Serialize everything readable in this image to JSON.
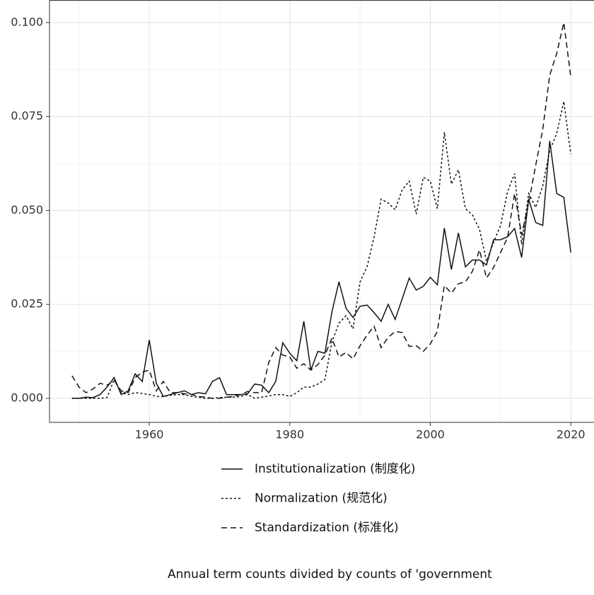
{
  "chart_data": {
    "type": "line",
    "x": [
      1949,
      1950,
      1951,
      1952,
      1953,
      1954,
      1955,
      1956,
      1957,
      1958,
      1959,
      1960,
      1961,
      1962,
      1963,
      1964,
      1965,
      1966,
      1967,
      1968,
      1969,
      1970,
      1971,
      1972,
      1973,
      1974,
      1975,
      1976,
      1977,
      1978,
      1979,
      1980,
      1981,
      1982,
      1983,
      1984,
      1985,
      1986,
      1987,
      1988,
      1989,
      1990,
      1991,
      1992,
      1993,
      1994,
      1995,
      1996,
      1997,
      1998,
      1999,
      2000,
      2001,
      2002,
      2003,
      2004,
      2005,
      2006,
      2007,
      2008,
      2009,
      2010,
      2011,
      2012,
      2013,
      2014,
      2015,
      2016,
      2017,
      2018,
      2019,
      2020
    ],
    "series": [
      {
        "name": "Institutionalization (制度化)",
        "color": "#111111",
        "dash": "solid",
        "values": [
          0,
          0,
          0.0003,
          0.0002,
          0.001,
          0.003,
          0.0055,
          0.001,
          0.002,
          0.0065,
          0.0045,
          0.0155,
          0.004,
          0.0005,
          0.001,
          0.0015,
          0.002,
          0.001,
          0.0015,
          0.0012,
          0.0045,
          0.0055,
          0.001,
          0.001,
          0.001,
          0.0012,
          0.0038,
          0.0035,
          0.0015,
          0.0045,
          0.0148,
          0.012,
          0.01,
          0.0205,
          0.0075,
          0.0125,
          0.012,
          0.023,
          0.031,
          0.024,
          0.0215,
          0.0245,
          0.0248,
          0.0228,
          0.0205,
          0.025,
          0.021,
          0.0265,
          0.032,
          0.0288,
          0.0298,
          0.0322,
          0.0302,
          0.0453,
          0.0343,
          0.044,
          0.035,
          0.0368,
          0.0368,
          0.0355,
          0.0422,
          0.0422,
          0.043,
          0.0452,
          0.0375,
          0.053,
          0.0468,
          0.046,
          0.0685,
          0.0545,
          0.0535,
          0.0388
        ]
      },
      {
        "name": "Normalization (规范化)",
        "color": "#111111",
        "dash": "dotted",
        "values": [
          0,
          0,
          0,
          0,
          0,
          0.0002,
          0.005,
          0.0015,
          0.001,
          0.0015,
          0.0013,
          0.001,
          0.0005,
          0.0005,
          0.0008,
          0.001,
          0.001,
          0.0005,
          0.0003,
          0,
          0,
          0.0002,
          0.0003,
          0.0003,
          0.0005,
          0.001,
          0,
          0.0003,
          0.0006,
          0.001,
          0.001,
          0.0005,
          0.0015,
          0.003,
          0.003,
          0.0038,
          0.005,
          0.015,
          0.02,
          0.022,
          0.0185,
          0.031,
          0.035,
          0.043,
          0.053,
          0.052,
          0.0502,
          0.0555,
          0.0578,
          0.049,
          0.0588,
          0.0578,
          0.0505,
          0.0708,
          0.057,
          0.0608,
          0.0505,
          0.0488,
          0.045,
          0.0365,
          0.0415,
          0.046,
          0.055,
          0.0598,
          0.041,
          0.0545,
          0.0508,
          0.0565,
          0.066,
          0.0705,
          0.079,
          0.065
        ]
      },
      {
        "name": "Standardization (标准化)",
        "color": "#111111",
        "dash": "dashed",
        "values": [
          0.006,
          0.003,
          0.0015,
          0.0025,
          0.004,
          0.0035,
          0.0048,
          0.002,
          0.0015,
          0.0055,
          0.007,
          0.0075,
          0.002,
          0.0045,
          0.0015,
          0.0015,
          0.0012,
          0.001,
          0.0005,
          0.0003,
          0,
          0,
          0.0003,
          0.0005,
          0.001,
          0.0018,
          0.0015,
          0.0015,
          0.0095,
          0.0135,
          0.0115,
          0.011,
          0.008,
          0.0092,
          0.0075,
          0.009,
          0.0115,
          0.016,
          0.011,
          0.0122,
          0.0105,
          0.014,
          0.0168,
          0.0192,
          0.0135,
          0.0162,
          0.0178,
          0.0175,
          0.0138,
          0.014,
          0.0125,
          0.0145,
          0.0178,
          0.03,
          0.028,
          0.0305,
          0.031,
          0.0338,
          0.0395,
          0.032,
          0.0348,
          0.0388,
          0.0428,
          0.0545,
          0.0435,
          0.052,
          0.062,
          0.0715,
          0.086,
          0.0918,
          0.1,
          0.0855
        ]
      }
    ],
    "xlim": [
      1945.8,
      2023.3
    ],
    "xticks": [
      1960,
      1980,
      2000,
      2020
    ],
    "ylim": [
      -0.0064,
      0.106
    ],
    "yticks": [
      {
        "value": 0,
        "label": "0.000"
      },
      {
        "value": 0.025,
        "label": "0.025"
      },
      {
        "value": 0.05,
        "label": "0.050"
      },
      {
        "value": 0.075,
        "label": "0.075"
      },
      {
        "value": 0.1,
        "label": "0.100"
      }
    ],
    "grid": true,
    "legend": "bottom",
    "caption": "Annual term counts divided by counts of 'government"
  }
}
